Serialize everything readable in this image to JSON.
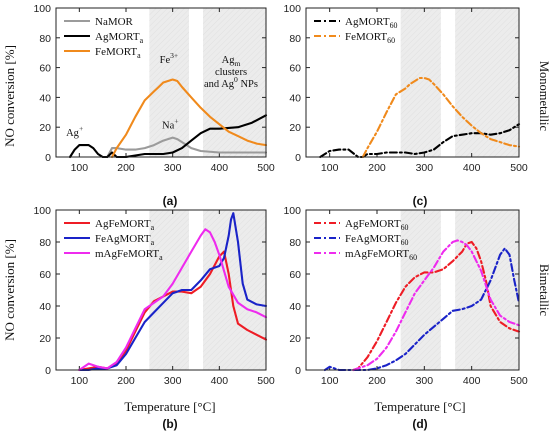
{
  "figure": {
    "ylabel": "NO conversion [%]",
    "xlabel": "Temperature [°C]",
    "row_titles": [
      "Monometallic",
      "Bimetallic"
    ],
    "colors": {
      "NaMOR": "#9b9b9b",
      "AgMORT": "#000000",
      "FeMORT": "#f08a1c",
      "AgFeMORT": "#ee1c25",
      "FeAgMORT": "#1a23c8",
      "mAgFeMORT": "#ee2bee",
      "region_fill": "#e9e9e9"
    }
  },
  "chart_data": [
    {
      "type": "line",
      "panel": "(a)",
      "xlim": [
        50,
        500
      ],
      "ylim": [
        0,
        100
      ],
      "xticks": [
        100,
        200,
        300,
        400,
        500
      ],
      "yticks": [
        0,
        20,
        40,
        60,
        80,
        100
      ],
      "shaded_regions": [
        [
          250,
          335
        ],
        [
          365,
          500
        ]
      ],
      "legend_position": "top-left",
      "annotations": [
        {
          "base": "Ag",
          "sup": "+",
          "sub": "",
          "suffix": "",
          "x": 90,
          "y": 14
        },
        {
          "base": "Fe",
          "sup": "3+",
          "sub": "",
          "suffix": "",
          "x": 292,
          "y": 63
        },
        {
          "base": "Na",
          "sup": "+",
          "sub": "",
          "suffix": "",
          "x": 295,
          "y": 19
        },
        {
          "base": "Ag",
          "sup": "",
          "sub": "m",
          "suffix": "",
          "x": 425,
          "y": 63
        },
        {
          "base": "clusters",
          "sup": "",
          "sub": "",
          "suffix": "",
          "x": 425,
          "y": 55
        },
        {
          "base": "and Ag",
          "sup": "0",
          "sub": "",
          "suffix": " NPs",
          "x": 425,
          "y": 47
        }
      ],
      "series": [
        {
          "name": "NaMOR",
          "sub": "",
          "color_key": "NaMOR",
          "dash": "solid",
          "x": [
            160,
            170,
            180,
            200,
            220,
            240,
            260,
            280,
            300,
            310,
            320,
            340,
            360,
            400,
            440,
            470,
            500
          ],
          "y": [
            0,
            6,
            6,
            5,
            5,
            6,
            8,
            11,
            13,
            12,
            10,
            6,
            4,
            3,
            3,
            3,
            3
          ]
        },
        {
          "name": "AgMORT",
          "sub": "a",
          "color_key": "AgMORT",
          "dash": "solid",
          "x": [
            80,
            90,
            100,
            110,
            120,
            130,
            140,
            150,
            160,
            170,
            180,
            200,
            240,
            280,
            300,
            320,
            340,
            360,
            380,
            400,
            440,
            470,
            500
          ],
          "y": [
            0,
            5,
            8,
            8,
            8,
            6,
            2,
            0,
            0,
            3,
            0,
            0,
            2,
            2,
            3,
            6,
            11,
            16,
            19,
            19,
            20,
            23,
            28
          ]
        },
        {
          "name": "FeMORT",
          "sub": "a",
          "color_key": "FeMORT",
          "dash": "solid",
          "x": [
            170,
            180,
            200,
            220,
            240,
            260,
            270,
            280,
            290,
            300,
            310,
            320,
            340,
            360,
            380,
            400,
            420,
            440,
            460,
            480,
            500
          ],
          "y": [
            0,
            6,
            15,
            27,
            38,
            44,
            47,
            50,
            51,
            52,
            51,
            47,
            40,
            33,
            27,
            22,
            17,
            14,
            11,
            9,
            8
          ]
        }
      ]
    },
    {
      "type": "line",
      "panel": "(c)",
      "xlim": [
        50,
        500
      ],
      "ylim": [
        0,
        100
      ],
      "xticks": [
        100,
        200,
        300,
        400,
        500
      ],
      "yticks": [
        0,
        20,
        40,
        60,
        80,
        100
      ],
      "shaded_regions": [
        [
          250,
          335
        ],
        [
          365,
          500
        ]
      ],
      "legend_position": "top-left",
      "series": [
        {
          "name": "AgMORT",
          "sub": "60",
          "color_key": "AgMORT",
          "dash": "dashdot",
          "x": [
            80,
            100,
            120,
            140,
            160,
            170,
            180,
            200,
            220,
            240,
            260,
            280,
            300,
            320,
            340,
            360,
            380,
            400,
            420,
            440,
            460,
            480,
            500
          ],
          "y": [
            0,
            4,
            5,
            5,
            0,
            0,
            2,
            2,
            3,
            3,
            3,
            2,
            3,
            5,
            10,
            14,
            15,
            16,
            16,
            15,
            16,
            18,
            22
          ]
        },
        {
          "name": "FeMORT",
          "sub": "60",
          "color_key": "FeMORT",
          "dash": "dashdot",
          "x": [
            170,
            180,
            200,
            220,
            240,
            260,
            270,
            280,
            290,
            300,
            310,
            320,
            340,
            360,
            380,
            400,
            420,
            440,
            460,
            480,
            500
          ],
          "y": [
            0,
            6,
            17,
            30,
            42,
            46,
            49,
            51,
            53,
            53,
            52,
            49,
            42,
            34,
            27,
            21,
            16,
            12,
            10,
            8,
            7
          ]
        }
      ]
    },
    {
      "type": "line",
      "panel": "(b)",
      "xlim": [
        50,
        500
      ],
      "ylim": [
        0,
        100
      ],
      "xticks": [
        100,
        200,
        300,
        400,
        500
      ],
      "yticks": [
        0,
        20,
        40,
        60,
        80,
        100
      ],
      "shaded_regions": [
        [
          250,
          335
        ],
        [
          365,
          500
        ]
      ],
      "legend_position": "top-left",
      "series": [
        {
          "name": "AgFeMORT",
          "sub": "a",
          "color_key": "AgFeMORT",
          "dash": "solid",
          "x": [
            100,
            120,
            140,
            160,
            180,
            200,
            220,
            240,
            260,
            280,
            300,
            320,
            340,
            360,
            380,
            400,
            410,
            420,
            430,
            440,
            460,
            480,
            500
          ],
          "y": [
            0,
            1,
            2,
            1,
            4,
            12,
            24,
            36,
            43,
            46,
            49,
            49,
            48,
            52,
            60,
            71,
            74,
            60,
            40,
            29,
            25,
            22,
            19
          ]
        },
        {
          "name": "FeAgMORT",
          "sub": "a",
          "color_key": "FeAgMORT",
          "dash": "solid",
          "x": [
            100,
            120,
            140,
            160,
            180,
            200,
            220,
            240,
            260,
            280,
            300,
            320,
            340,
            360,
            380,
            400,
            410,
            420,
            425,
            430,
            440,
            450,
            460,
            480,
            500
          ],
          "y": [
            0,
            0,
            1,
            1,
            3,
            10,
            20,
            30,
            36,
            42,
            48,
            50,
            50,
            56,
            63,
            65,
            70,
            84,
            94,
            98,
            80,
            54,
            44,
            41,
            40
          ]
        },
        {
          "name": "mAgFeMORT",
          "sub": "a",
          "color_key": "mAgFeMORT",
          "dash": "solid",
          "x": [
            100,
            120,
            140,
            160,
            180,
            200,
            220,
            240,
            260,
            280,
            300,
            320,
            340,
            360,
            370,
            380,
            390,
            400,
            420,
            440,
            460,
            480,
            500
          ],
          "y": [
            0,
            4,
            2,
            1,
            5,
            14,
            26,
            38,
            42,
            46,
            54,
            64,
            74,
            84,
            88,
            86,
            80,
            72,
            52,
            42,
            38,
            36,
            33
          ]
        }
      ]
    },
    {
      "type": "line",
      "panel": "(d)",
      "xlim": [
        50,
        500
      ],
      "ylim": [
        0,
        100
      ],
      "xticks": [
        100,
        200,
        300,
        400,
        500
      ],
      "yticks": [
        0,
        20,
        40,
        60,
        80,
        100
      ],
      "shaded_regions": [
        [
          250,
          335
        ],
        [
          365,
          500
        ]
      ],
      "legend_position": "top-left",
      "series": [
        {
          "name": "AgFeMORT",
          "sub": "60",
          "color_key": "AgFeMORT",
          "dash": "dashdot",
          "x": [
            150,
            160,
            180,
            200,
            220,
            240,
            260,
            280,
            300,
            320,
            340,
            360,
            380,
            390,
            400,
            410,
            420,
            430,
            440,
            460,
            480,
            500
          ],
          "y": [
            0,
            1,
            8,
            18,
            30,
            42,
            52,
            58,
            61,
            61,
            63,
            68,
            74,
            79,
            80,
            76,
            68,
            56,
            40,
            30,
            26,
            24
          ]
        },
        {
          "name": "FeAgMORT",
          "sub": "60",
          "color_key": "FeAgMORT",
          "dash": "dashdot",
          "x": [
            90,
            100,
            110,
            120,
            140,
            160,
            180,
            200,
            220,
            240,
            260,
            280,
            300,
            320,
            340,
            360,
            380,
            400,
            420,
            440,
            460,
            470,
            480,
            490,
            500
          ],
          "y": [
            0,
            2,
            1,
            0,
            0,
            0,
            0,
            1,
            3,
            6,
            10,
            16,
            22,
            27,
            32,
            37,
            38,
            40,
            44,
            56,
            72,
            76,
            72,
            56,
            42
          ]
        },
        {
          "name": "mAgFeMORT",
          "sub": "60",
          "color_key": "mAgFeMORT",
          "dash": "dashdot",
          "x": [
            150,
            160,
            180,
            200,
            220,
            240,
            260,
            280,
            300,
            320,
            340,
            360,
            370,
            380,
            390,
            400,
            420,
            440,
            460,
            480,
            500
          ],
          "y": [
            0,
            1,
            3,
            7,
            14,
            24,
            36,
            48,
            56,
            64,
            74,
            80,
            81,
            80,
            78,
            74,
            62,
            44,
            34,
            30,
            28
          ]
        }
      ]
    }
  ]
}
